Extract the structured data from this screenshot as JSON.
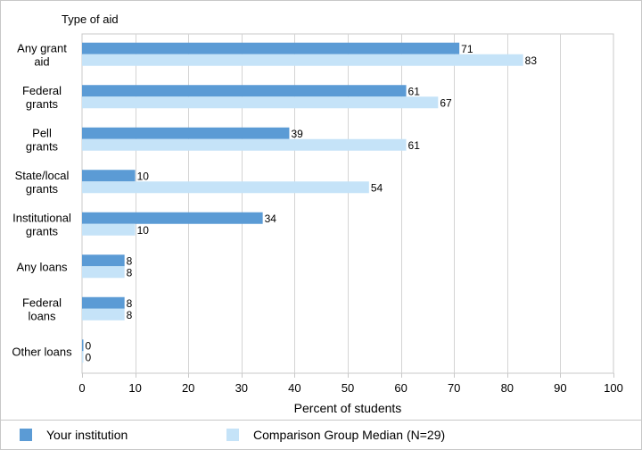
{
  "chart_data": {
    "type": "bar",
    "orientation": "horizontal",
    "title": "",
    "ytitle": "Type of aid",
    "xlabel": "Percent of students",
    "xlim": [
      0,
      100
    ],
    "xticks": [
      0,
      10,
      20,
      30,
      40,
      50,
      60,
      70,
      80,
      90,
      100
    ],
    "grid": true,
    "legend_position": "bottom",
    "categories": [
      [
        "Any grant",
        "aid"
      ],
      [
        "Federal",
        "grants"
      ],
      [
        "Pell",
        "grants"
      ],
      [
        "State/local",
        "grants"
      ],
      [
        "Institutional",
        "grants"
      ],
      [
        "Any loans"
      ],
      [
        "Federal",
        "loans"
      ],
      [
        "Other loans"
      ]
    ],
    "series": [
      {
        "name": "Your institution",
        "color": "#5b9bd5",
        "values": [
          71,
          61,
          39,
          10,
          34,
          8,
          8,
          0
        ]
      },
      {
        "name": "Comparison Group Median (N=29)",
        "color": "#c5e3f8",
        "values": [
          83,
          67,
          61,
          54,
          10,
          8,
          8,
          0
        ]
      }
    ]
  }
}
